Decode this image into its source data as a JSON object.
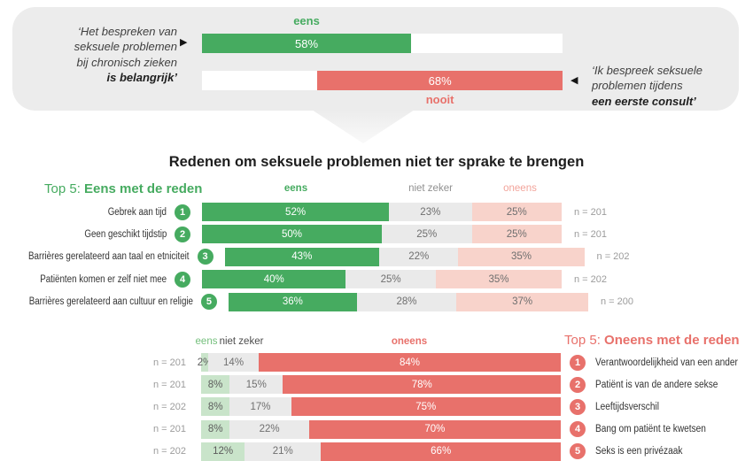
{
  "colors": {
    "green": "#46ab60",
    "green-light": "#c9e4ca",
    "green-header-light": "#74bf7c",
    "red": "#e8716b",
    "pink-light": "#f8d3cb",
    "pink-header": "#f2a49b",
    "gray-seg": "#eaeaea",
    "banner-bg": "#ececec"
  },
  "banner": {
    "left_quote_lines": [
      "‘Het bespreken van",
      "seksuele problemen",
      "bij chronisch zieken"
    ],
    "left_quote_bold": "is belangrijk’",
    "right_quote_lines": [
      "‘Ik bespreek seksuele",
      "problemen tijdens"
    ],
    "right_quote_bold": "een eerste consult’",
    "arrow_right": "▶",
    "arrow_left": "◀",
    "agree_label": "eens",
    "agree_pct": 58,
    "never_label": "nooit",
    "never_pct": 68
  },
  "main_title": "Redenen om seksuele problemen niet ter sprake te brengen",
  "agree_table": {
    "title_prefix": "Top 5: ",
    "title_bold": "Eens met de reden",
    "col_eens": "eens",
    "col_niet_zeker": "niet zeker",
    "col_oneens": "oneens",
    "rows": [
      {
        "rank": 1,
        "label": "Gebrek aan tijd",
        "eens": 52,
        "niet_zeker": 23,
        "oneens": 25,
        "n": "n = 201"
      },
      {
        "rank": 2,
        "label": "Geen geschikt tijdstip",
        "eens": 50,
        "niet_zeker": 25,
        "oneens": 25,
        "n": "n = 201"
      },
      {
        "rank": 3,
        "label": "Barrières gerelateerd aan taal en etniciteit",
        "eens": 43,
        "niet_zeker": 22,
        "oneens": 35,
        "n": "n = 202"
      },
      {
        "rank": 4,
        "label": "Patiënten komen er zelf niet mee",
        "eens": 40,
        "niet_zeker": 25,
        "oneens": 35,
        "n": "n = 202"
      },
      {
        "rank": 5,
        "label": "Barrières gerelateerd aan cultuur en religie",
        "eens": 36,
        "niet_zeker": 28,
        "oneens": 37,
        "n": "n = 200"
      }
    ]
  },
  "disagree_table": {
    "title_prefix": "Top 5: ",
    "title_bold": "Oneens met de reden",
    "col_eens": "eens",
    "col_niet_zeker": "niet zeker",
    "col_oneens": "oneens",
    "rows": [
      {
        "rank": 1,
        "label": "Verantwoordelijkheid van een ander",
        "eens": 2,
        "niet_zeker": 14,
        "oneens": 84,
        "n": "n = 201"
      },
      {
        "rank": 2,
        "label": "Patiënt is van de andere sekse",
        "eens": 8,
        "niet_zeker": 15,
        "oneens": 78,
        "n": "n = 201"
      },
      {
        "rank": 3,
        "label": "Leeftijdsverschil",
        "eens": 8,
        "niet_zeker": 17,
        "oneens": 75,
        "n": "n = 202"
      },
      {
        "rank": 4,
        "label": "Bang om patiënt te kwetsen",
        "eens": 8,
        "niet_zeker": 22,
        "oneens": 70,
        "n": "n = 201"
      },
      {
        "rank": 5,
        "label": "Seks is een privézaak",
        "eens": 12,
        "niet_zeker": 21,
        "oneens": 66,
        "n": "n = 202"
      }
    ]
  },
  "chart_data": [
    {
      "type": "bar",
      "title": "‘Het bespreken van seksuele problemen bij chronisch zieken is belangrijk’",
      "categories": [
        "eens"
      ],
      "values": [
        58
      ],
      "xlim": [
        0,
        100
      ],
      "unit": "%"
    },
    {
      "type": "bar",
      "title": "‘Ik bespreek seksuele problemen tijdens een eerste consult’",
      "categories": [
        "nooit"
      ],
      "values": [
        68
      ],
      "xlim": [
        0,
        100
      ],
      "unit": "%"
    },
    {
      "type": "bar",
      "stacked": true,
      "title": "Top 5: Eens met de reden",
      "categories": [
        "Gebrek aan tijd",
        "Geen geschikt tijdstip",
        "Barrières gerelateerd aan taal en etniciteit",
        "Patiënten komen er zelf niet mee",
        "Barrières gerelateerd aan cultuur en religie"
      ],
      "series": [
        {
          "name": "eens",
          "values": [
            52,
            50,
            43,
            40,
            36
          ]
        },
        {
          "name": "niet zeker",
          "values": [
            23,
            25,
            22,
            25,
            28
          ]
        },
        {
          "name": "oneens",
          "values": [
            25,
            25,
            35,
            35,
            37
          ]
        }
      ],
      "n": [
        201,
        201,
        202,
        202,
        200
      ],
      "unit": "%"
    },
    {
      "type": "bar",
      "stacked": true,
      "title": "Top 5: Oneens met de reden",
      "categories": [
        "Verantwoordelijkheid van een ander",
        "Patiënt is van de andere sekse",
        "Leeftijdsverschil",
        "Bang om patiënt te kwetsen",
        "Seks is een privézaak"
      ],
      "series": [
        {
          "name": "eens",
          "values": [
            2,
            8,
            8,
            8,
            12
          ]
        },
        {
          "name": "niet zeker",
          "values": [
            14,
            15,
            17,
            22,
            21
          ]
        },
        {
          "name": "oneens",
          "values": [
            84,
            78,
            75,
            70,
            66
          ]
        }
      ],
      "n": [
        201,
        201,
        202,
        201,
        202
      ],
      "unit": "%"
    }
  ]
}
